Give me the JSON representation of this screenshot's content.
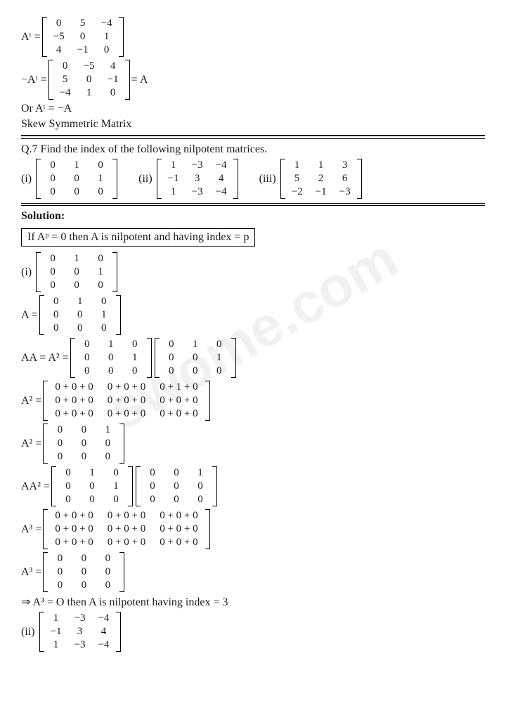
{
  "watermark": "swome.com",
  "eq1_lhs": "Aᵗ =",
  "m_At": [
    [
      "0",
      "5",
      "−4"
    ],
    [
      "−5",
      "0",
      "1"
    ],
    [
      "4",
      "−1",
      "0"
    ]
  ],
  "eq2_lhs": "−Aᵗ =",
  "m_negAt": [
    [
      "0",
      "−5",
      "4"
    ],
    [
      "5",
      "0",
      "−1"
    ],
    [
      "−4",
      "1",
      "0"
    ]
  ],
  "eq2_rhs": "= A",
  "line_or": "Or Aᵗ = −A",
  "line_skew": "Skew Symmetric Matrix",
  "q7": "Q.7 Find the index of the following nilpotent matrices.",
  "lbl_i": "(i)",
  "lbl_ii": "(ii)",
  "lbl_iii": "(iii)",
  "m_q_i": [
    [
      "0",
      "1",
      "0"
    ],
    [
      "0",
      "0",
      "1"
    ],
    [
      "0",
      "0",
      "0"
    ]
  ],
  "m_q_ii": [
    [
      "1",
      "−3",
      "−4"
    ],
    [
      "−1",
      "3",
      "4"
    ],
    [
      "1",
      "−3",
      "−4"
    ]
  ],
  "m_q_iii": [
    [
      "1",
      "1",
      "3"
    ],
    [
      "5",
      "2",
      "6"
    ],
    [
      "−2",
      "−1",
      "−3"
    ]
  ],
  "solution": "Solution:",
  "boxed_text": "If Aᵖ = 0 then A is nilpotent and having index = p",
  "eqA_lhs": "A =",
  "m_A": [
    [
      "0",
      "1",
      "0"
    ],
    [
      "0",
      "0",
      "1"
    ],
    [
      "0",
      "0",
      "0"
    ]
  ],
  "eqAA_lhs": "AA = A² =",
  "eqA2_lhs": "A² =",
  "m_A2_expand": [
    [
      "0 + 0 + 0",
      "0 + 0 + 0",
      "0 + 1 + 0"
    ],
    [
      "0 + 0 + 0",
      "0 + 0 + 0",
      "0 + 0 + 0"
    ],
    [
      "0 + 0 + 0",
      "0 + 0 + 0",
      "0 + 0 + 0"
    ]
  ],
  "m_A2": [
    [
      "0",
      "0",
      "1"
    ],
    [
      "0",
      "0",
      "0"
    ],
    [
      "0",
      "0",
      "0"
    ]
  ],
  "eqAA2_lhs": "AA² =",
  "eqA3_lhs": "A³ =",
  "m_A3_expand": [
    [
      "0 + 0 + 0",
      "0 + 0 + 0",
      "0 + 0 + 0"
    ],
    [
      "0 + 0 + 0",
      "0 + 0 + 0",
      "0 + 0 + 0"
    ],
    [
      "0 + 0 + 0",
      "0 + 0 + 0",
      "0 + 0 + 0"
    ]
  ],
  "m_A3": [
    [
      "0",
      "0",
      "0"
    ],
    [
      "0",
      "0",
      "0"
    ],
    [
      "0",
      "0",
      "0"
    ]
  ],
  "conclusion": "⇒ A³ = O then A is nilpotent having index = 3",
  "m_ii": [
    [
      "1",
      "−3",
      "−4"
    ],
    [
      "−1",
      "3",
      "4"
    ],
    [
      "1",
      "−3",
      "−4"
    ]
  ]
}
